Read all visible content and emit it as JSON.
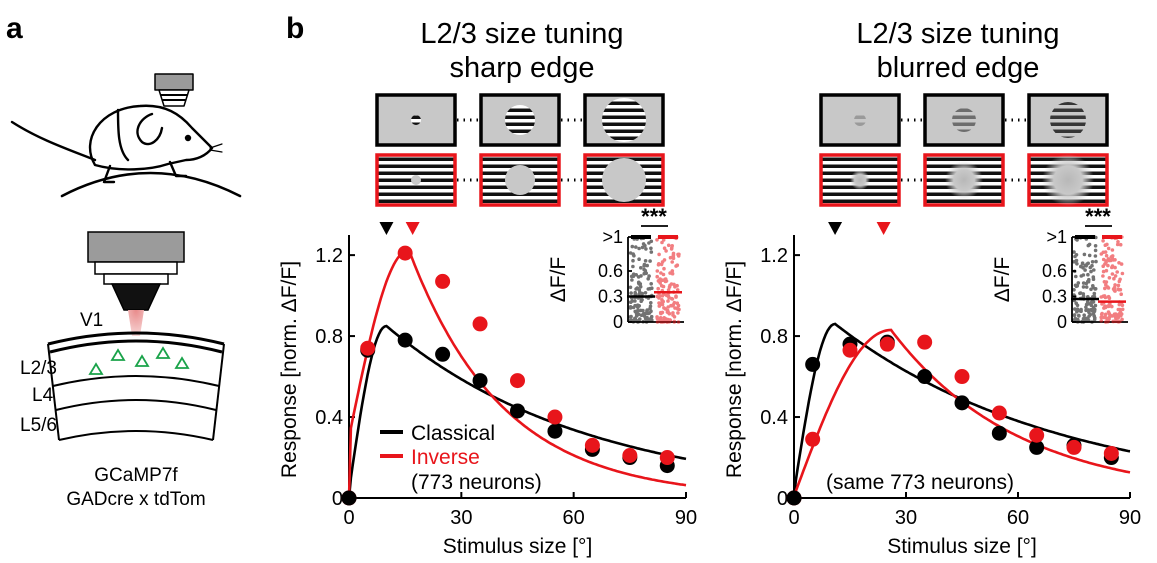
{
  "panel_a": {
    "letter": "a",
    "labels": {
      "v1": "V1",
      "l23": "L2/3",
      "l4": "L4",
      "l56": "L5/6"
    },
    "caption_line1": "GCaMP7f",
    "caption_line2": "GADcre x tdTom"
  },
  "panel_b": {
    "letter": "b"
  },
  "colors": {
    "classical": "#000000",
    "inverse": "#e8151b",
    "neurons": "#1aa34a"
  },
  "chart_data": [
    {
      "type": "scatter",
      "title_line1": "L2/3 size tuning",
      "title_line2": "sharp edge",
      "xlabel": "Stimulus size [°]",
      "ylabel": "Response [norm. ΔF/F]",
      "xlim": [
        0,
        90
      ],
      "ylim": [
        0,
        1.25
      ],
      "xticks": [
        "0",
        "30",
        "60",
        "90"
      ],
      "yticks": [
        "0",
        "0.4",
        "0.8",
        "1.2"
      ],
      "legend": {
        "classical": "Classical",
        "inverse": "Inverse",
        "note": "(773 neurons)"
      },
      "series": [
        {
          "name": "Classical",
          "x": [
            0,
            5,
            15,
            25,
            35,
            45,
            55,
            65,
            75,
            85
          ],
          "y": [
            0,
            0.73,
            0.78,
            0.71,
            0.58,
            0.43,
            0.33,
            0.24,
            0.2,
            0.16
          ],
          "peak_marker_x": 10
        },
        {
          "name": "Inverse",
          "x": [
            0,
            5,
            15,
            25,
            35,
            45,
            55,
            65,
            75,
            85
          ],
          "y": [
            0,
            0.74,
            1.21,
            1.07,
            0.86,
            0.58,
            0.4,
            0.26,
            0.21,
            0.2
          ],
          "peak_marker_x": 17
        }
      ],
      "fit": {
        "classical": {
          "amp": 0.85,
          "peak": 10,
          "decay": 54,
          "base": 0.035
        },
        "inverse": {
          "amp": 1.225,
          "peak": 16,
          "decay": 25,
          "base": 0.3
        }
      },
      "inset": {
        "ylabel": "ΔF/F",
        "yticks": [
          "0",
          "0.3",
          "0.6",
          ">1"
        ],
        "significance": "***",
        "medians": {
          "classical": 0.3,
          "inverse": 0.35
        }
      }
    },
    {
      "type": "scatter",
      "title_line1": "L2/3 size tuning",
      "title_line2": "blurred edge",
      "xlabel": "Stimulus size [°]",
      "ylabel": "Response [norm. ΔF/F]",
      "xlim": [
        0,
        90
      ],
      "ylim": [
        0,
        1.25
      ],
      "xticks": [
        "0",
        "30",
        "60",
        "90"
      ],
      "yticks": [
        "0",
        "0.4",
        "0.8",
        "1.2"
      ],
      "legend": {
        "note": "(same 773 neurons)"
      },
      "series": [
        {
          "name": "Classical",
          "x": [
            0,
            5,
            15,
            25,
            35,
            45,
            55,
            65,
            75,
            85
          ],
          "y": [
            0,
            0.66,
            0.76,
            0.77,
            0.6,
            0.47,
            0.32,
            0.25,
            0.26,
            0.2
          ],
          "peak_marker_x": 11
        },
        {
          "name": "Inverse",
          "x": [
            0,
            5,
            15,
            25,
            35,
            45,
            55,
            65,
            75,
            85
          ],
          "y": [
            0,
            0.29,
            0.73,
            0.76,
            0.77,
            0.6,
            0.42,
            0.31,
            0.25,
            0.22
          ],
          "peak_marker_x": 24
        }
      ],
      "fit": {
        "classical": {
          "amp": 0.86,
          "peak": 11,
          "decay": 60,
          "base": 0.03
        },
        "inverse": {
          "amp": 0.83,
          "peak": 26,
          "decay": 34,
          "base": 0.01
        }
      },
      "inset": {
        "ylabel": "ΔF/F",
        "yticks": [
          "0",
          "0.3",
          "0.6",
          ">1"
        ],
        "significance": "***",
        "medians": {
          "classical": 0.27,
          "inverse": 0.24
        }
      }
    }
  ]
}
